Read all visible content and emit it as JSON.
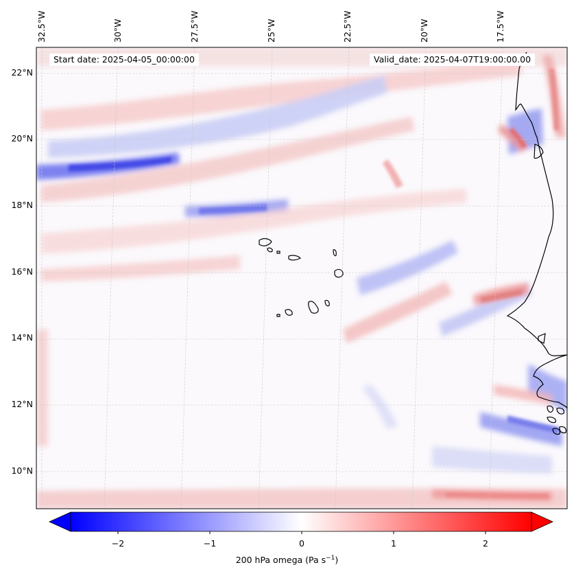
{
  "map": {
    "start_date": "Start date: 2025-04-05_00:00:00",
    "valid_date": "Valid_date: 2025-04-07T19:00:00.00",
    "lon_labels": [
      "32.5°W",
      "30°W",
      "27.5°W",
      "25°W",
      "22.5°W",
      "20°W",
      "17.5°W"
    ],
    "lat_labels": [
      "22°N",
      "20°N",
      "18°N",
      "16°N",
      "14°N",
      "12°N",
      "10°N"
    ],
    "field": "200 hPa omega",
    "colors": {
      "negative": "#0000ff",
      "zero": "#ffffff",
      "positive": "#ff0000",
      "coast": "#000000"
    }
  },
  "colorbar": {
    "ticks": [
      "−2",
      "−1",
      "0",
      "1",
      "2"
    ],
    "label_main": "200 hPa omega (Pa s",
    "label_sup": "−1",
    "label_close": ")"
  }
}
